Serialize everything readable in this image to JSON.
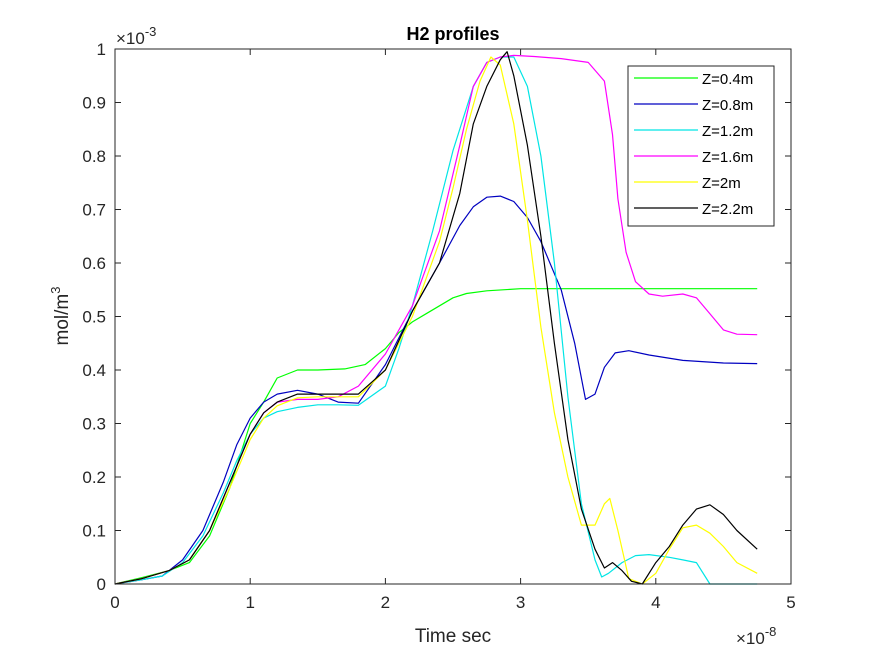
{
  "chart_data": {
    "type": "line",
    "title": "H2 profiles",
    "xlabel": "Time sec",
    "ylabel": "mol/m",
    "ylabel_superscript": "3",
    "x_multiplier": "×10",
    "x_exponent": "-8",
    "y_multiplier": "×10",
    "y_exponent": "-3",
    "xlim": [
      0,
      5
    ],
    "ylim": [
      0,
      1
    ],
    "xticks": [
      "0",
      "1",
      "2",
      "3",
      "4",
      "5"
    ],
    "yticks": [
      "0",
      "0.1",
      "0.2",
      "0.3",
      "0.4",
      "0.5",
      "0.6",
      "0.7",
      "0.8",
      "0.9",
      "1"
    ],
    "legend_position": "top-right",
    "series": [
      {
        "name": "Z=0.4m",
        "color": "#00ff00",
        "x": [
          0,
          0.2,
          0.4,
          0.55,
          0.7,
          0.85,
          1.0,
          1.1,
          1.2,
          1.35,
          1.5,
          1.7,
          1.85,
          2.0,
          2.1,
          2.2,
          2.3,
          2.4,
          2.5,
          2.6,
          2.75,
          3.0,
          3.5,
          4.0,
          4.5,
          4.75
        ],
        "y": [
          0,
          0.012,
          0.025,
          0.04,
          0.09,
          0.18,
          0.3,
          0.34,
          0.385,
          0.4,
          0.4,
          0.402,
          0.41,
          0.44,
          0.47,
          0.49,
          0.505,
          0.52,
          0.535,
          0.543,
          0.548,
          0.552,
          0.552,
          0.552,
          0.552,
          0.552
        ]
      },
      {
        "name": "Z=0.8m",
        "color": "#0000c0",
        "x": [
          0,
          0.2,
          0.35,
          0.5,
          0.65,
          0.8,
          0.9,
          1.0,
          1.1,
          1.2,
          1.35,
          1.5,
          1.65,
          1.8,
          2.0,
          2.2,
          2.4,
          2.55,
          2.65,
          2.75,
          2.85,
          2.95,
          3.05,
          3.15,
          3.3,
          3.4,
          3.48,
          3.55,
          3.62,
          3.7,
          3.8,
          3.95,
          4.2,
          4.5,
          4.75
        ],
        "y": [
          0,
          0.008,
          0.015,
          0.045,
          0.1,
          0.19,
          0.26,
          0.31,
          0.34,
          0.355,
          0.362,
          0.355,
          0.34,
          0.338,
          0.41,
          0.51,
          0.6,
          0.67,
          0.705,
          0.723,
          0.725,
          0.715,
          0.685,
          0.64,
          0.55,
          0.45,
          0.345,
          0.355,
          0.405,
          0.432,
          0.436,
          0.428,
          0.418,
          0.413,
          0.412
        ]
      },
      {
        "name": "Z=1.2m",
        "color": "#00e5e5",
        "x": [
          0,
          0.2,
          0.35,
          0.5,
          0.65,
          0.8,
          0.9,
          1.0,
          1.1,
          1.2,
          1.35,
          1.5,
          1.65,
          1.8,
          2.0,
          2.1,
          2.2,
          2.35,
          2.5,
          2.65,
          2.75,
          2.85,
          2.95,
          3.05,
          3.15,
          3.25,
          3.35,
          3.45,
          3.55,
          3.6,
          3.65,
          3.75,
          3.85,
          3.95,
          4.1,
          4.2,
          4.3,
          4.4,
          4.75
        ],
        "y": [
          0,
          0.008,
          0.015,
          0.04,
          0.09,
          0.17,
          0.23,
          0.28,
          0.31,
          0.322,
          0.33,
          0.335,
          0.335,
          0.334,
          0.37,
          0.44,
          0.52,
          0.66,
          0.81,
          0.93,
          0.975,
          0.985,
          0.985,
          0.93,
          0.8,
          0.6,
          0.35,
          0.15,
          0.045,
          0.013,
          0.02,
          0.04,
          0.053,
          0.055,
          0.05,
          0.045,
          0.04,
          0,
          0
        ]
      },
      {
        "name": "Z=1.6m",
        "color": "#ff00ff",
        "x": [
          0,
          0.2,
          0.4,
          0.55,
          0.7,
          0.85,
          1.0,
          1.1,
          1.2,
          1.35,
          1.5,
          1.65,
          1.8,
          2.0,
          2.2,
          2.4,
          2.55,
          2.65,
          2.75,
          2.85,
          2.95,
          3.1,
          3.3,
          3.5,
          3.62,
          3.68,
          3.72,
          3.78,
          3.85,
          3.95,
          4.05,
          4.2,
          4.3,
          4.4,
          4.5,
          4.6,
          4.75
        ],
        "y": [
          0,
          0.01,
          0.025,
          0.045,
          0.1,
          0.19,
          0.28,
          0.32,
          0.34,
          0.345,
          0.345,
          0.35,
          0.37,
          0.43,
          0.52,
          0.66,
          0.82,
          0.93,
          0.975,
          0.985,
          0.988,
          0.986,
          0.982,
          0.975,
          0.94,
          0.84,
          0.72,
          0.62,
          0.565,
          0.542,
          0.538,
          0.542,
          0.535,
          0.505,
          0.475,
          0.467,
          0.466
        ]
      },
      {
        "name": "Z=2m",
        "color": "#ffff00",
        "x": [
          0,
          0.2,
          0.4,
          0.55,
          0.7,
          0.85,
          1.0,
          1.1,
          1.2,
          1.35,
          1.5,
          1.65,
          1.8,
          2.0,
          2.2,
          2.4,
          2.5,
          2.6,
          2.7,
          2.78,
          2.85,
          2.95,
          3.05,
          3.15,
          3.25,
          3.35,
          3.45,
          3.55,
          3.62,
          3.66,
          3.72,
          3.8,
          3.9,
          4.0,
          4.1,
          4.2,
          4.3,
          4.4,
          4.5,
          4.6,
          4.75
        ],
        "y": [
          0,
          0.01,
          0.025,
          0.045,
          0.1,
          0.18,
          0.27,
          0.31,
          0.333,
          0.348,
          0.35,
          0.35,
          0.35,
          0.4,
          0.5,
          0.64,
          0.74,
          0.85,
          0.94,
          0.985,
          0.97,
          0.86,
          0.68,
          0.48,
          0.32,
          0.2,
          0.11,
          0.11,
          0.15,
          0.16,
          0.1,
          0.01,
          0,
          0.02,
          0.065,
          0.105,
          0.11,
          0.095,
          0.07,
          0.04,
          0.02
        ]
      },
      {
        "name": "Z=2.2m",
        "color": "#000000",
        "x": [
          0,
          0.2,
          0.4,
          0.55,
          0.7,
          0.85,
          1.0,
          1.1,
          1.2,
          1.35,
          1.5,
          1.65,
          1.8,
          2.0,
          2.2,
          2.4,
          2.55,
          2.65,
          2.75,
          2.85,
          2.9,
          2.95,
          3.05,
          3.15,
          3.25,
          3.35,
          3.45,
          3.55,
          3.62,
          3.68,
          3.75,
          3.82,
          3.9,
          4.0,
          4.1,
          4.2,
          4.3,
          4.4,
          4.5,
          4.6,
          4.75
        ],
        "y": [
          0,
          0.01,
          0.025,
          0.045,
          0.1,
          0.19,
          0.28,
          0.32,
          0.34,
          0.355,
          0.355,
          0.355,
          0.355,
          0.4,
          0.51,
          0.6,
          0.73,
          0.86,
          0.93,
          0.98,
          0.995,
          0.95,
          0.82,
          0.65,
          0.45,
          0.27,
          0.14,
          0.065,
          0.03,
          0.04,
          0.025,
          0.005,
          0,
          0.04,
          0.07,
          0.11,
          0.14,
          0.148,
          0.13,
          0.1,
          0.065
        ]
      }
    ]
  }
}
